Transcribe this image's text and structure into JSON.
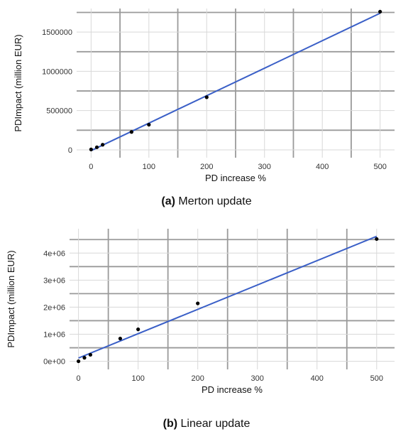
{
  "chart_data": [
    {
      "type": "scatter",
      "caption_tag": "(a)",
      "caption_text": "Merton update",
      "xlabel": "PD increase %",
      "ylabel": "PDImpact (million EUR)",
      "xlim": [
        -25,
        525
      ],
      "ylim": [
        -100000,
        1800000
      ],
      "x_ticks": [
        0,
        100,
        200,
        300,
        400,
        500
      ],
      "y_ticks": [
        0,
        500000,
        1000000,
        1500000
      ],
      "y_tick_labels": [
        "0",
        "500000",
        "1000000",
        "1500000"
      ],
      "grid": true,
      "points": {
        "x": [
          0,
          10,
          20,
          70,
          100,
          200,
          500
        ],
        "y": [
          5000,
          33000,
          65000,
          228000,
          320000,
          670000,
          1760000
        ]
      },
      "fit_line": {
        "x": [
          0,
          500
        ],
        "y": [
          -10000,
          1740000
        ],
        "color": "#3a5fc7"
      }
    },
    {
      "type": "scatter",
      "caption_tag": "(b)",
      "caption_text": "Linear update",
      "xlabel": "PD increase %",
      "ylabel": "PDImpact (million EUR)",
      "xlim": [
        -15,
        530
      ],
      "ylim": [
        -300000,
        4900000
      ],
      "x_ticks": [
        0,
        100,
        200,
        300,
        400,
        500
      ],
      "y_ticks": [
        0,
        1000000,
        2000000,
        3000000,
        4000000
      ],
      "y_tick_labels": [
        "0e+00",
        "1e+06",
        "2e+06",
        "3e+06",
        "4e+06"
      ],
      "grid": true,
      "points": {
        "x": [
          0,
          10,
          20,
          70,
          100,
          200,
          500
        ],
        "y": [
          0,
          130000,
          240000,
          840000,
          1180000,
          2140000,
          4520000
        ]
      },
      "fit_line": {
        "x": [
          0,
          500
        ],
        "y": [
          120000,
          4620000
        ],
        "color": "#3a5fc7"
      }
    }
  ]
}
